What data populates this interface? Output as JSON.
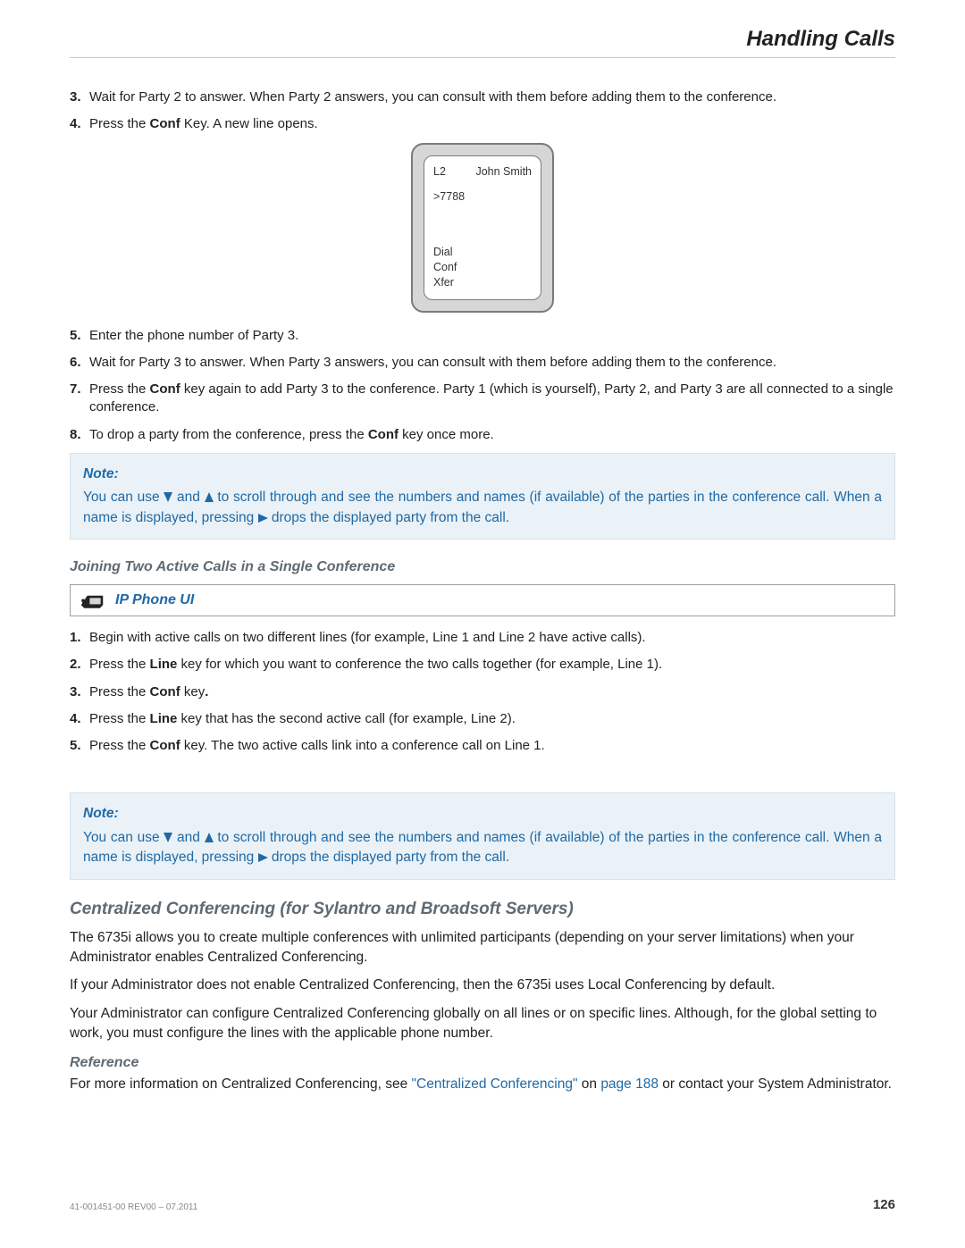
{
  "header_title": "Handling Calls",
  "steps_a": [
    {
      "n": 3,
      "html": "Wait for Party 2 to answer. When Party 2 answers, you can consult with them before adding them to the conference."
    },
    {
      "n": 4,
      "html": "Press the <b>Conf</b> Key. A new line opens."
    }
  ],
  "phone_screen": {
    "line_label": "L2",
    "name": "John Smith",
    "dialed": ">7788",
    "soft1": "Dial",
    "soft2": "Conf",
    "soft3": "Xfer"
  },
  "steps_b": [
    {
      "n": 5,
      "html": "Enter the phone number of Party 3."
    },
    {
      "n": 6,
      "html": "Wait for Party 3 to answer. When Party 3 answers, you can consult with them before adding them to the conference."
    },
    {
      "n": 7,
      "html": "Press the <b>Conf</b> key again to add Party 3 to the conference. Party 1 (which is yourself), Party 2, and Party 3 are all connected to a single conference."
    },
    {
      "n": 8,
      "html": "To drop a party from the conference, press the <b>Conf</b> key once more."
    }
  ],
  "note": {
    "title": "Note:",
    "line1_a": "You can use ",
    "line1_b": " and ",
    "line1_c": " to scroll through and see the numbers and names (if available) of the parties in the conference call. When a name is displayed, pressing ",
    "line1_d": " drops the displayed party from the call."
  },
  "h3_join": "Joining Two Active Calls in a Single Conference",
  "ip_label": "IP Phone UI",
  "steps_c": [
    {
      "n": 1,
      "html": "Begin with active calls on two different lines (for example, Line 1 and Line 2 have active calls)."
    },
    {
      "n": 2,
      "html": "Press the <b>Line</b> key for which you want to conference the two calls together (for example, Line 1)."
    },
    {
      "n": 3,
      "html": "Press the <b>Conf</b> key<b>.</b>"
    },
    {
      "n": 4,
      "html": "Press the <b>Line</b> key that has the second active call (for example, Line 2)."
    },
    {
      "n": 5,
      "html": "Press the <b>Conf</b> key. The two active calls link into a conference call on Line 1."
    }
  ],
  "h2_central": "Centralized Conferencing (for Sylantro and Broadsoft Servers)",
  "central_p1": "The 6735i allows you to create multiple conferences with unlimited participants (depending on your server limitations) when your Administrator enables Centralized Conferencing.",
  "central_p2": "If your Administrator does not enable Centralized Conferencing, then the 6735i uses Local Conferencing by default.",
  "central_p3": "Your Administrator can configure Centralized Conferencing globally on all lines or on specific lines. Although, for the global setting to work, you must configure the lines with the applicable phone number.",
  "ref_title": "Reference",
  "ref_a": "For more information on Centralized Conferencing, see ",
  "ref_link1": "\"Centralized Conferencing\"",
  "ref_mid": " on ",
  "ref_link2": "page 188",
  "ref_b": " or contact your System Administrator.",
  "footer_doc": "41-001451-00 REV00 – 07.2011",
  "page_number": "126",
  "colors": {
    "accent": "#1f69a6",
    "muted_heading": "#5f6a72",
    "note_bg": "#eaf2f7",
    "phone_body": "#d6d6d6"
  }
}
